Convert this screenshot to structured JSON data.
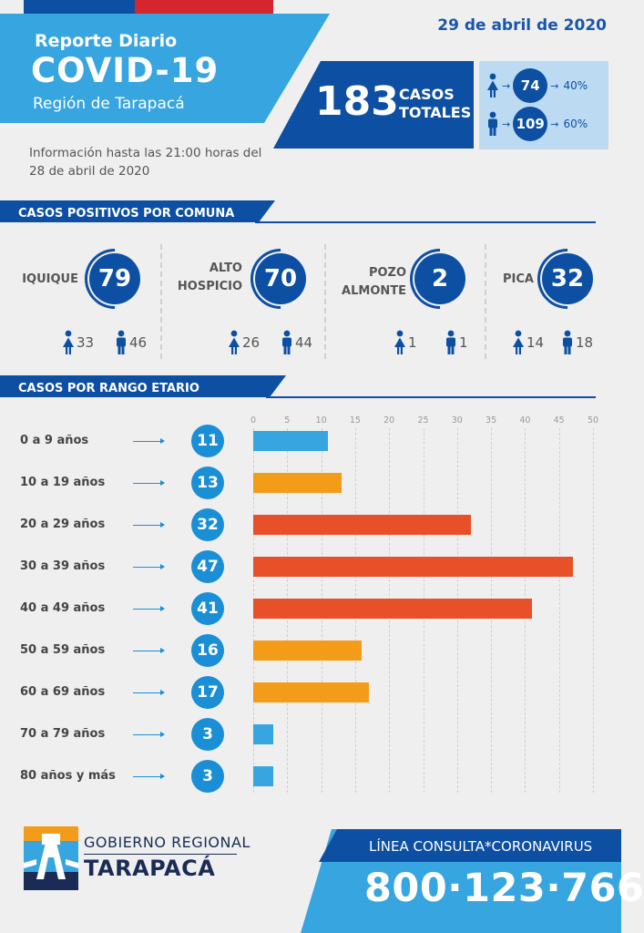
{
  "header": {
    "date": "29 de abril de 2020",
    "subtitle": "Reporte Diario",
    "title": "COVID-19",
    "region": "Región de Tarapacá",
    "info": "Información hasta las 21:00 horas del 28 de abril de 2020"
  },
  "totals": {
    "total": "183",
    "label_line1": "CASOS",
    "label_line2": "TOTALES",
    "female_count": "74",
    "female_pct": "40%",
    "male_count": "109",
    "male_pct": "60%"
  },
  "comunas_section": {
    "title": "CASOS POSITIVOS POR COMUNA",
    "items": [
      {
        "name_line1": "IQUIQUE",
        "name_line2": "",
        "total": "79",
        "female": "33",
        "male": "46"
      },
      {
        "name_line1": "ALTO",
        "name_line2": "HOSPICIO",
        "total": "70",
        "female": "26",
        "male": "44"
      },
      {
        "name_line1": "POZO",
        "name_line2": "ALMONTE",
        "total": "2",
        "female": "1",
        "male": "1"
      },
      {
        "name_line1": "PICA",
        "name_line2": "",
        "total": "32",
        "female": "14",
        "male": "18"
      }
    ]
  },
  "age_section": {
    "title": "CASOS POR RANGO ETARIO"
  },
  "chart_data": {
    "type": "bar",
    "orientation": "horizontal",
    "categories": [
      "0 a 9 años",
      "10 a 19 años",
      "20 a 29 años",
      "30 a 39 años",
      "40 a 49 años",
      "50 a 59 años",
      "60 a 69 años",
      "70 a 79 años",
      "80 años y más"
    ],
    "values": [
      11,
      13,
      32,
      47,
      41,
      16,
      17,
      3,
      3
    ],
    "value_labels": [
      "11",
      "13",
      "32",
      "47",
      "41",
      "16",
      "17",
      "3",
      "3"
    ],
    "xticks": [
      "0",
      "5",
      "10",
      "15",
      "20",
      "25",
      "30",
      "35",
      "40",
      "45",
      "50"
    ],
    "xlim": [
      0,
      50
    ],
    "bar_colors": [
      "#36a5e0",
      "#f39c1a",
      "#e8502a",
      "#e8502a",
      "#e8502a",
      "#f39c1a",
      "#f39c1a",
      "#36a5e0",
      "#36a5e0"
    ],
    "grid": true
  },
  "footer": {
    "org_line1": "GOBIERNO REGIONAL",
    "org_line2": "TARAPACÁ",
    "hotline_label": "LÍNEA CONSULTA*CORONAVIRUS",
    "hotline_number": "800·123·766"
  },
  "colors": {
    "primary_blue": "#0d4fa3",
    "light_blue": "#36a5e0",
    "orange": "#f39c1a",
    "red_orange": "#e8502a",
    "flag_red": "#d4262e"
  }
}
